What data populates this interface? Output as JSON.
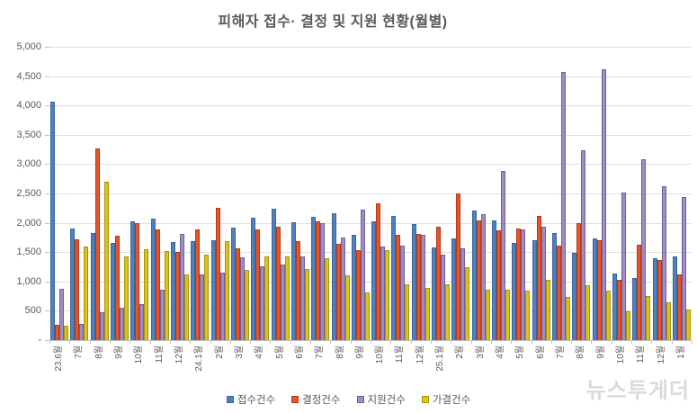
{
  "watermark": "뉴스투게더",
  "colors": {
    "text": "#595959",
    "gridline": "#dedede",
    "axis": "#bfbfbf",
    "watermark": "#c5c5c5"
  },
  "chart_data": {
    "type": "bar",
    "title": "피해자 접수· 결정 및 지원 현황(월별)",
    "xlabel": "",
    "ylabel": "",
    "ylim": [
      0,
      5000
    ],
    "ytick_step": 500,
    "ytick_labels": [
      "-",
      "500",
      "1,000",
      "1,500",
      "2,000",
      "2,500",
      "3,000",
      "3,500",
      "4,000",
      "4,500",
      "5,000"
    ],
    "grid": true,
    "legend_position": "bottom",
    "categories": [
      "23.6월",
      "7월",
      "8월",
      "9월",
      "10월",
      "11월",
      "12월",
      "24.1월",
      "2월",
      "3월",
      "4월",
      "5월",
      "6월",
      "7월",
      "8월",
      "9월",
      "10월",
      "11월",
      "12월",
      "25.1월",
      "2월",
      "3월",
      "4월",
      "5월",
      "6월",
      "7월",
      "8월",
      "9월",
      "10월",
      "11월",
      "12월",
      "1월"
    ],
    "series": [
      {
        "name": "접수건수",
        "color": "#4e81bd",
        "border_color": "#3a6699",
        "values": [
          4070,
          1900,
          1830,
          1660,
          2020,
          2070,
          1670,
          1690,
          1700,
          1920,
          2080,
          2240,
          2010,
          2100,
          2160,
          1800,
          2030,
          2120,
          1980,
          1580,
          1740,
          2210,
          2040,
          1660,
          1710,
          1820,
          1490,
          1730,
          1140,
          1060,
          1400,
          1430
        ]
      },
      {
        "name": "결정건수",
        "color": "#e85429",
        "border_color": "#b23a14",
        "values": [
          260,
          1720,
          3270,
          1780,
          2000,
          1880,
          1500,
          1880,
          2250,
          1560,
          1880,
          1930,
          1690,
          2020,
          1640,
          1540,
          2330,
          1800,
          1810,
          1940,
          2500,
          2040,
          1870,
          1900,
          2120,
          1610,
          2000,
          1700,
          1030,
          1620,
          1360,
          1120
        ]
      },
      {
        "name": "지원건수",
        "color": "#9e8cc3",
        "border_color": "#70609b",
        "values": [
          870,
          280,
          470,
          550,
          620,
          860,
          1810,
          1120,
          1150,
          1410,
          1250,
          1290,
          1420,
          2000,
          1750,
          2230,
          1600,
          1610,
          1790,
          1460,
          1570,
          2150,
          2890,
          1880,
          1930,
          4570,
          3240,
          4610,
          2520,
          3090,
          2620,
          2440
        ]
      },
      {
        "name": "가결건수",
        "color": "#dec412",
        "border_color": "#a59210",
        "values": [
          250,
          1600,
          2700,
          1430,
          1550,
          1520,
          1120,
          1450,
          1690,
          1200,
          1430,
          1420,
          1210,
          1390,
          1100,
          810,
          1540,
          950,
          890,
          950,
          1240,
          860,
          860,
          840,
          1020,
          740,
          930,
          840,
          490,
          750,
          640,
          520
        ]
      }
    ]
  }
}
